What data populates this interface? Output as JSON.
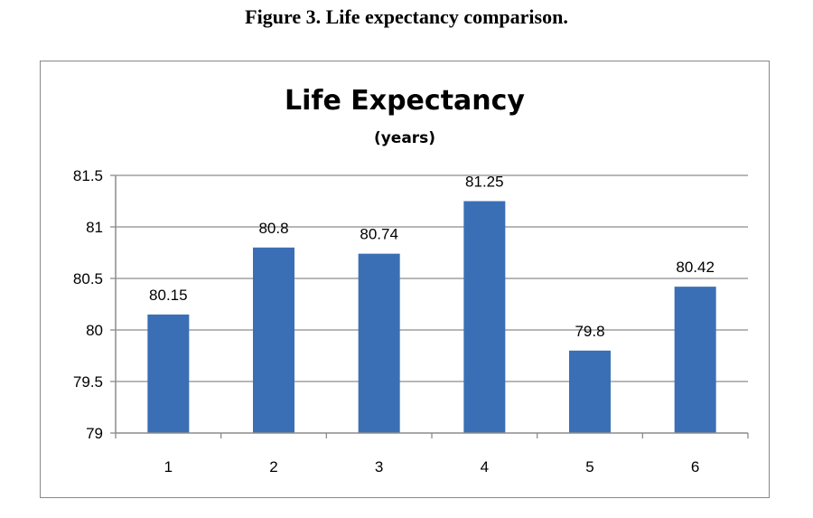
{
  "figure": {
    "caption": "Figure 3.  Life expectancy comparison."
  },
  "colors": {
    "bar": "#3a6fb6",
    "grid": "#8c8c8c",
    "axis": "#8c8c8c"
  },
  "chart_data": {
    "type": "bar",
    "title": "Life Expectancy",
    "subtitle": "(years)",
    "xlabel": "",
    "ylabel": "",
    "categories": [
      "1",
      "2",
      "3",
      "4",
      "5",
      "6"
    ],
    "values": [
      80.15,
      80.8,
      80.74,
      81.25,
      79.8,
      80.42
    ],
    "data_labels": [
      "80.15",
      "80.8",
      "80.74",
      "81.25",
      "79.8",
      "80.42"
    ],
    "ylim": [
      79,
      81.5
    ],
    "yticks": [
      "79",
      "79.5",
      "80",
      "80.5",
      "81",
      "81.5"
    ],
    "grid": true,
    "legend": "none"
  }
}
